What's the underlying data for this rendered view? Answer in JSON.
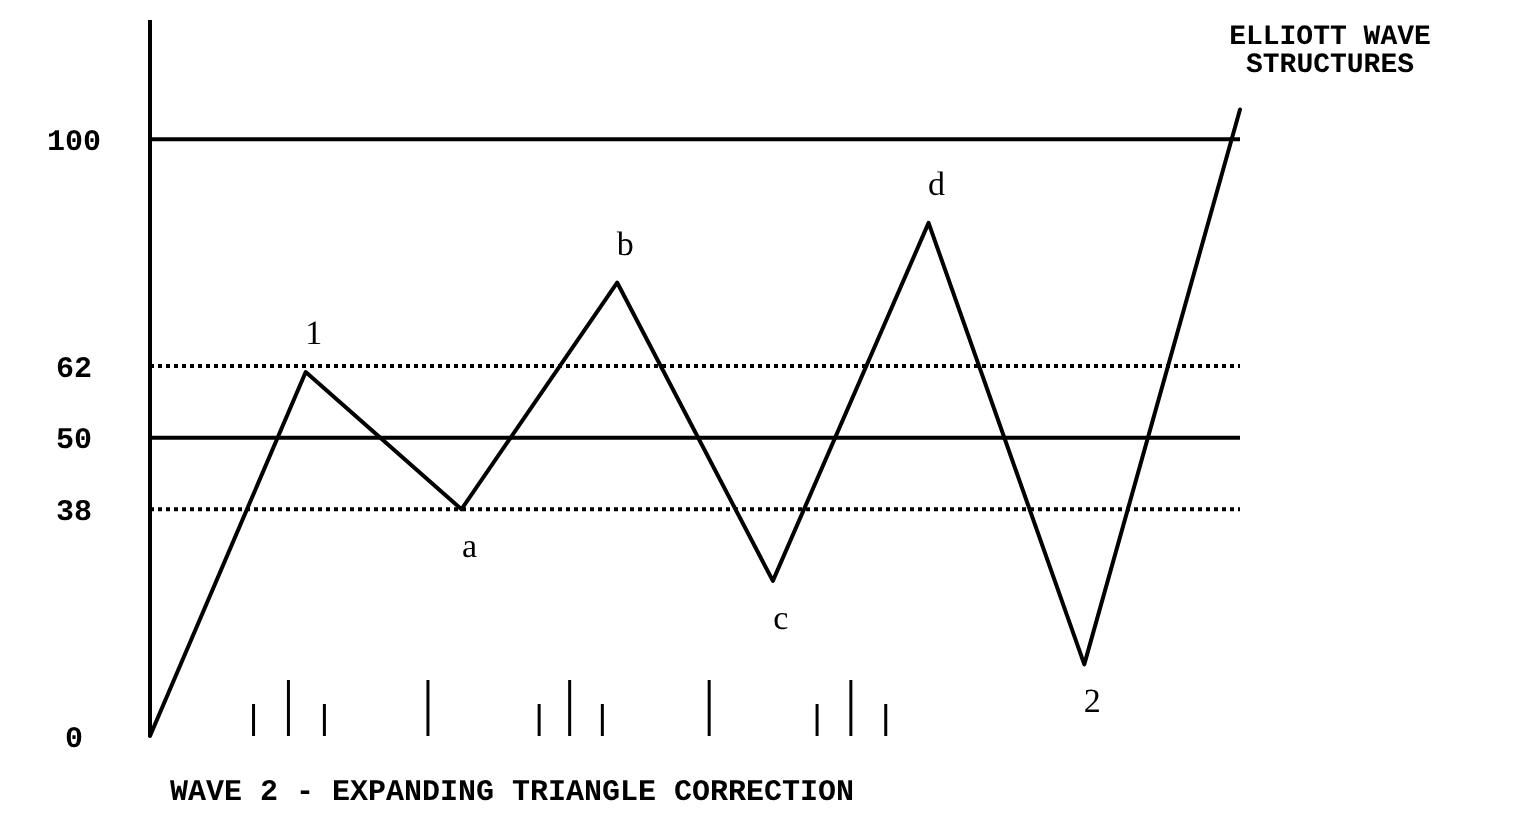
{
  "chart_data": {
    "type": "line",
    "title": "ELLIOTT WAVE\nSTRUCTURES",
    "xlabel": "WAVE 2 -  EXPANDING TRIANGLE CORRECTION",
    "categories": [
      null,
      null,
      null,
      null,
      null,
      null,
      null,
      null
    ],
    "series": [
      {
        "color": "#000000",
        "values": [
          0,
          61,
          38,
          76,
          26,
          86,
          12,
          105
        ]
      }
    ],
    "annotations": [
      {
        "text": "1",
        "y": 61
      },
      {
        "text": "a",
        "y": 38
      },
      {
        "text": "b",
        "y": 76
      },
      {
        "text": "c",
        "y": 26
      },
      {
        "text": "d",
        "y": 86
      },
      {
        "text": "2",
        "y": 12
      }
    ],
    "ylim": [
      0,
      120
    ],
    "yticks": [
      0,
      38,
      50,
      62,
      100
    ],
    "tick_labels": "y",
    "marker": "none",
    "line_style": "solid",
    "grid": false,
    "ref_lines": [
      {
        "axis": "y",
        "value": 100,
        "line_style": "solid",
        "color": "#000000"
      },
      {
        "axis": "y",
        "value": 62,
        "line_style": "dotted",
        "color": "#000000"
      },
      {
        "axis": "y",
        "value": 50,
        "line_style": "solid",
        "color": "#000000"
      },
      {
        "axis": "y",
        "value": 38,
        "line_style": "dotted",
        "color": "#000000"
      }
    ]
  }
}
